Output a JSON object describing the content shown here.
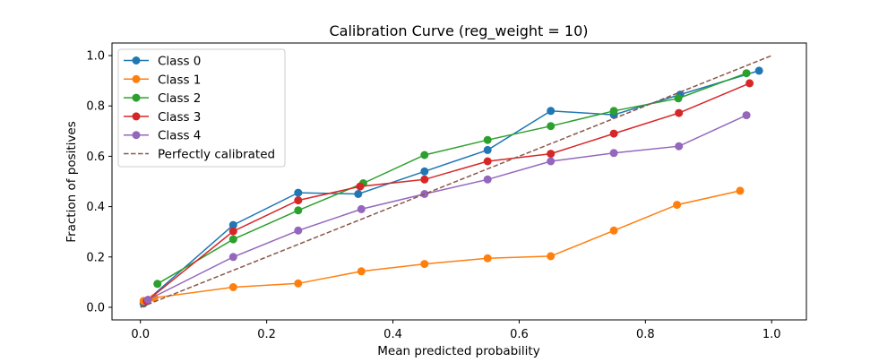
{
  "chart_data": {
    "type": "line",
    "title": "Calibration Curve (reg_weight = 10)",
    "xlabel": "Mean predicted probability",
    "ylabel": "Fraction of positives",
    "xlim": [
      -0.045,
      1.055
    ],
    "ylim": [
      -0.05,
      1.05
    ],
    "xticks": [
      "0.0",
      "0.2",
      "0.4",
      "0.6",
      "0.8",
      "1.0"
    ],
    "yticks": [
      "0.0",
      "0.2",
      "0.4",
      "0.6",
      "0.8",
      "1.0"
    ],
    "grid": false,
    "legend_position": "top-left",
    "series": [
      {
        "name": "Class 0",
        "color": "#1f77b4",
        "marker": "circle",
        "x": [
          0.005,
          0.147,
          0.25,
          0.345,
          0.45,
          0.55,
          0.65,
          0.75,
          0.855,
          0.98
        ],
        "y": [
          0.015,
          0.327,
          0.455,
          0.45,
          0.54,
          0.625,
          0.78,
          0.765,
          0.845,
          0.94
        ]
      },
      {
        "name": "Class 1",
        "color": "#ff7f0e",
        "marker": "circle",
        "x": [
          0.005,
          0.022,
          0.147,
          0.25,
          0.35,
          0.45,
          0.55,
          0.65,
          0.75,
          0.85,
          0.95
        ],
        "y": [
          0.025,
          0.038,
          0.08,
          0.095,
          0.143,
          0.172,
          0.195,
          0.203,
          0.305,
          0.407,
          0.463
        ]
      },
      {
        "name": "Class 2",
        "color": "#2ca02c",
        "marker": "circle",
        "x": [
          0.027,
          0.147,
          0.25,
          0.353,
          0.45,
          0.55,
          0.65,
          0.75,
          0.852,
          0.96
        ],
        "y": [
          0.093,
          0.27,
          0.385,
          0.493,
          0.605,
          0.665,
          0.72,
          0.78,
          0.83,
          0.93
        ]
      },
      {
        "name": "Class 3",
        "color": "#d62728",
        "marker": "circle",
        "x": [
          0.01,
          0.147,
          0.25,
          0.348,
          0.45,
          0.55,
          0.65,
          0.75,
          0.853,
          0.965
        ],
        "y": [
          0.025,
          0.302,
          0.425,
          0.48,
          0.508,
          0.58,
          0.61,
          0.69,
          0.772,
          0.89
        ]
      },
      {
        "name": "Class 4",
        "color": "#9467bd",
        "marker": "circle",
        "x": [
          0.012,
          0.147,
          0.25,
          0.35,
          0.45,
          0.55,
          0.65,
          0.75,
          0.853,
          0.96
        ],
        "y": [
          0.03,
          0.2,
          0.305,
          0.39,
          0.45,
          0.508,
          0.58,
          0.613,
          0.64,
          0.763
        ]
      },
      {
        "name": "Perfectly calibrated",
        "color": "#8c564b",
        "dashed": true,
        "marker": "none",
        "x": [
          0.0,
          1.0
        ],
        "y": [
          0.0,
          1.0
        ]
      }
    ]
  }
}
